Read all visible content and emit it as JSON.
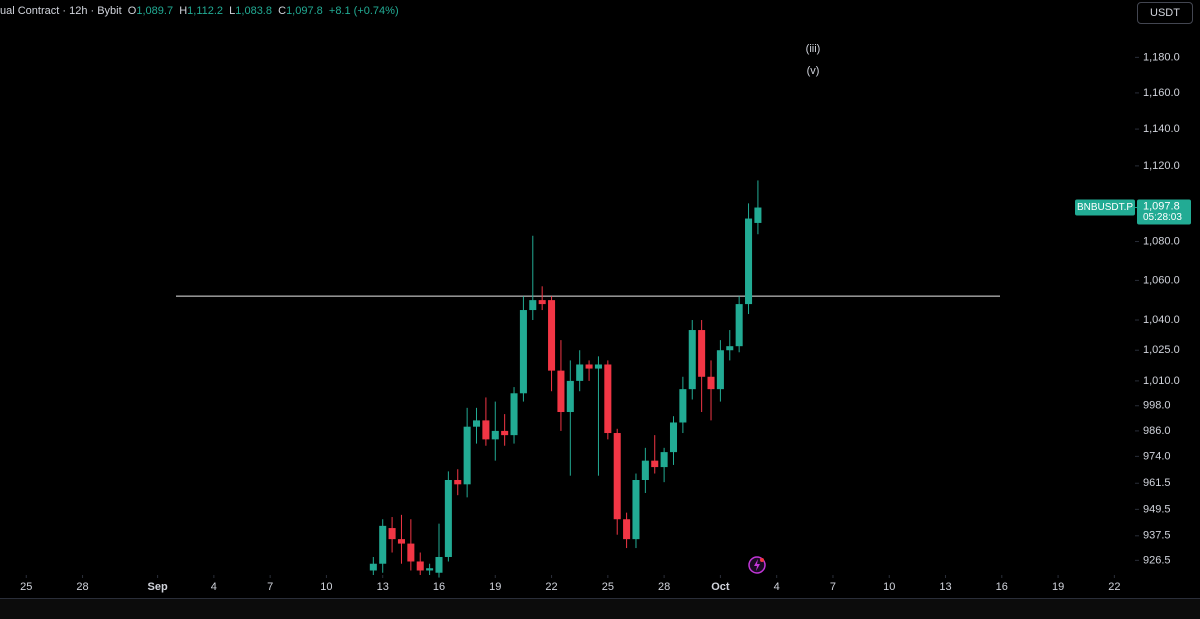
{
  "header": {
    "symbol": "ual Contract · 12h · Bybit",
    "o_label": "O",
    "o": "1,089.7",
    "h_label": "H",
    "h": "1,112.2",
    "l_label": "L",
    "l": "1,083.8",
    "c_label": "C",
    "c": "1,097.8",
    "change": "+8.1 (+0.74%)"
  },
  "currency_button": "USDT",
  "chart_data": {
    "type": "candlestick",
    "log_scale": true,
    "up_color": "#22ab94",
    "down_color": "#f23645",
    "x": [
      43.5,
      44,
      44.5,
      45,
      45.5,
      46,
      46.5,
      47,
      47.5,
      48,
      48.5,
      49,
      49.5,
      50,
      50.5,
      51,
      51.5,
      52,
      52.5,
      53,
      53.5,
      54,
      54.5,
      55,
      55.5,
      56,
      56.5,
      57,
      57.5,
      58,
      58.5,
      59,
      59.5,
      60,
      60.5,
      61,
      61.5,
      62,
      62.5,
      63,
      63.5,
      64
    ],
    "open": [
      922,
      925,
      941,
      936,
      934,
      926,
      922,
      921,
      928,
      963,
      961,
      988,
      991,
      982,
      986,
      984,
      1004,
      1045,
      1050,
      1050,
      1015,
      995,
      1010,
      1018,
      1016,
      1018,
      985,
      945,
      936,
      963,
      972,
      969,
      976,
      990,
      1006,
      1035,
      1012,
      1006,
      1025,
      1027,
      1048,
      1089.7
    ],
    "high": [
      928,
      945,
      946,
      947,
      945,
      930,
      925,
      943,
      967,
      968,
      997,
      997,
      1002,
      1000,
      994,
      1007,
      1052,
      1083,
      1057,
      1052,
      1030,
      1020,
      1025,
      1020,
      1022,
      1020,
      987,
      948,
      966,
      978,
      984,
      978,
      993,
      1012,
      1040,
      1040,
      1020,
      1030,
      1035,
      1052,
      1100,
      1112.2
    ],
    "low": [
      920,
      921,
      930,
      925,
      922,
      920,
      920,
      919,
      926,
      956,
      955,
      980,
      979,
      972,
      979,
      980,
      1000,
      1040,
      1045,
      1005,
      986,
      965,
      1005,
      1010,
      965,
      982,
      938,
      932,
      932,
      957,
      966,
      962,
      970,
      985,
      1001,
      995,
      991,
      1000,
      1020,
      1024,
      1043,
      1083.8
    ],
    "close": [
      925,
      942,
      936,
      934,
      926,
      922,
      923,
      928,
      963,
      961,
      988,
      991,
      982,
      986,
      984,
      1004,
      1045,
      1050,
      1048,
      1015,
      995,
      1010,
      1018,
      1016,
      1018,
      985,
      945,
      936,
      963,
      972,
      969,
      976,
      990,
      1006,
      1035,
      1012,
      1006,
      1025,
      1027,
      1048,
      1092,
      1097.8
    ],
    "xlim": [
      23.6,
      84.1
    ],
    "ylim": [
      920,
      1213
    ],
    "xticks": [
      25,
      28,
      {
        "value": 32,
        "label": "Sep"
      },
      {
        "value": 35,
        "label": "4"
      },
      {
        "value": 38,
        "label": "7"
      },
      {
        "value": 41,
        "label": "10"
      },
      {
        "value": 44,
        "label": "13"
      },
      {
        "value": 47,
        "label": "16"
      },
      {
        "value": 50,
        "label": "19"
      },
      {
        "value": 53,
        "label": "22"
      },
      {
        "value": 56,
        "label": "25"
      },
      {
        "value": 59,
        "label": "28"
      },
      {
        "value": 62,
        "label": "Oct"
      },
      {
        "value": 65,
        "label": "4"
      },
      {
        "value": 68,
        "label": "7"
      },
      {
        "value": 71,
        "label": "10"
      },
      {
        "value": 74,
        "label": "13"
      },
      {
        "value": 77,
        "label": "16"
      },
      {
        "value": 80,
        "label": "19"
      },
      {
        "value": 83,
        "label": "22"
      }
    ],
    "yticks": [
      {
        "value": 1180,
        "label": "1,180.0"
      },
      {
        "value": 1160,
        "label": "1,160.0"
      },
      {
        "value": 1140,
        "label": "1,140.0"
      },
      {
        "value": 1120,
        "label": "1,120.0"
      },
      {
        "value": 1080,
        "label": "1,080.0"
      },
      {
        "value": 1060,
        "label": "1,060.0"
      },
      {
        "value": 1040,
        "label": "1,040.0"
      },
      {
        "value": 1025,
        "label": "1,025.0"
      },
      {
        "value": 1010,
        "label": "1,010.0"
      },
      {
        "value": 998,
        "label": "998.0"
      },
      {
        "value": 986,
        "label": "986.0"
      },
      {
        "value": 974,
        "label": "974.0"
      },
      {
        "value": 961.5,
        "label": "961.5"
      },
      {
        "value": 949.5,
        "label": "949.5"
      },
      {
        "value": 937.5,
        "label": "937.5"
      },
      {
        "value": 926.5,
        "label": "926.5"
      }
    ],
    "horizontal_line": 1052,
    "last_price": {
      "value": 1097.8,
      "label": "1,097.8"
    },
    "last_price_symbol": "BNBUSDT.P",
    "countdown": "05:28:03",
    "annotations": [
      "(iii)",
      "(v)"
    ]
  }
}
